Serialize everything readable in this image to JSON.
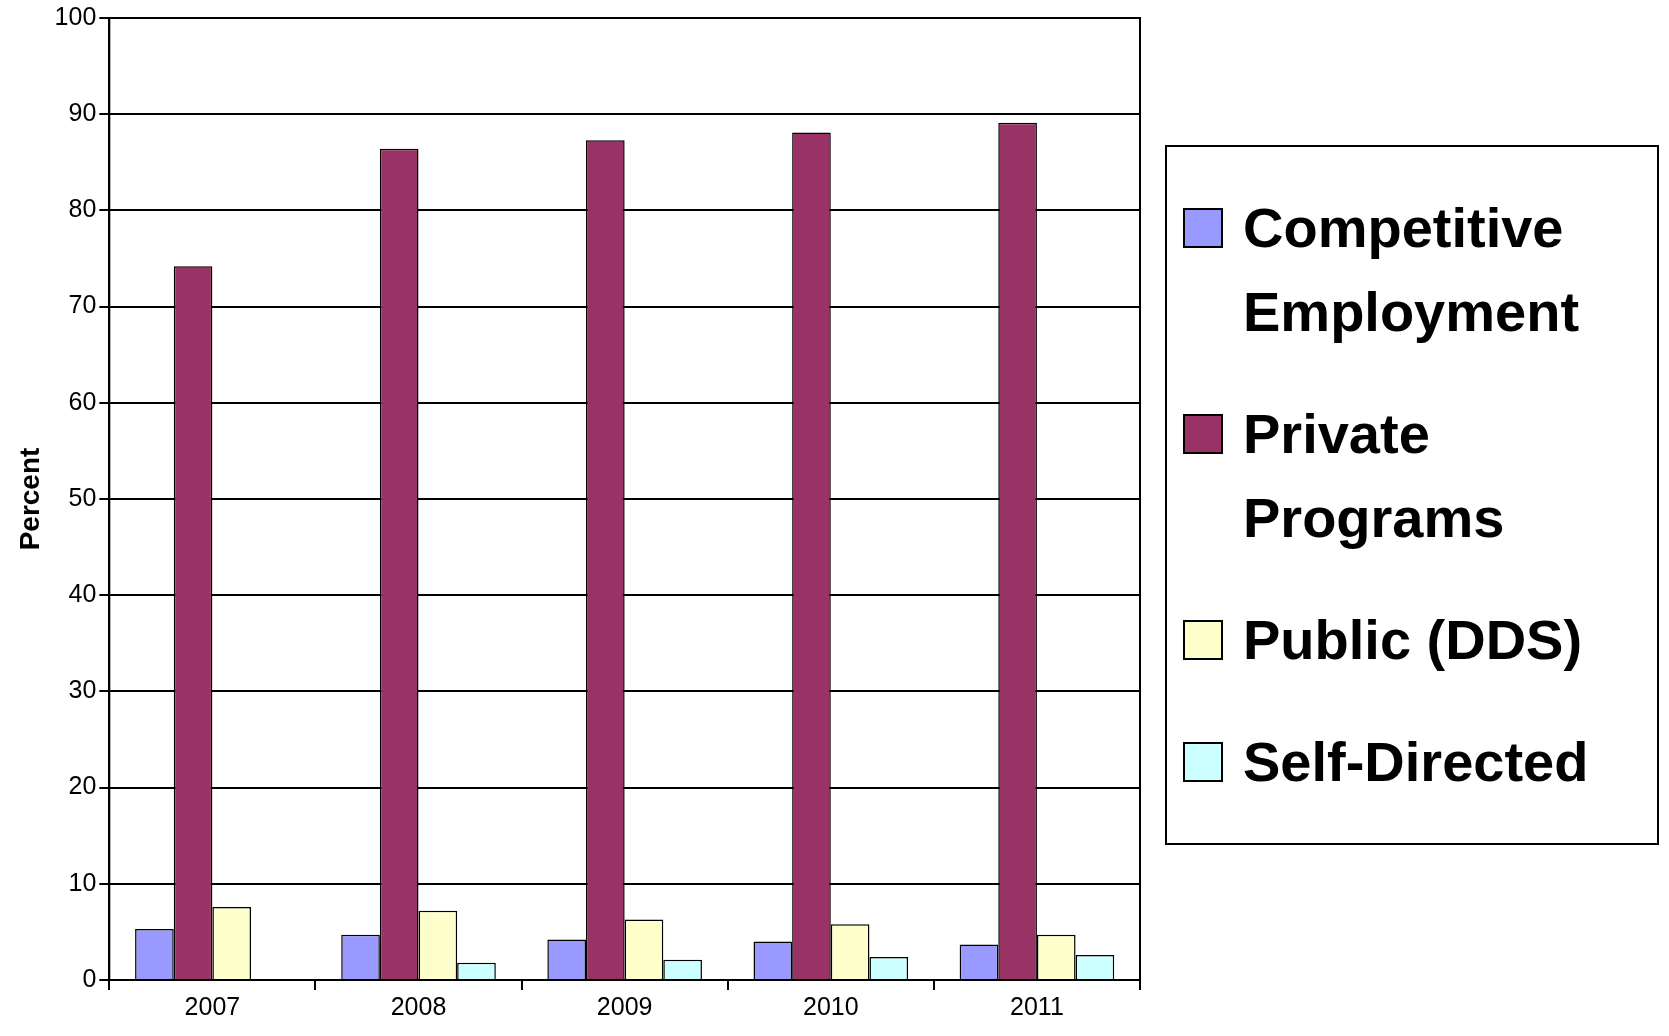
{
  "chart_data": {
    "type": "bar",
    "ylabel": "Percent",
    "categories": [
      "2007",
      "2008",
      "2009",
      "2010",
      "2011"
    ],
    "series": [
      {
        "name": "Competitive Employment",
        "color": "#9999ff",
        "values": [
          5.3,
          4.7,
          4.2,
          4.0,
          3.7
        ]
      },
      {
        "name": "Private Programs",
        "color": "#993366",
        "values": [
          74.2,
          86.4,
          87.3,
          88.1,
          89.1
        ]
      },
      {
        "name": "Public (DDS)",
        "color": "#ffffcc",
        "values": [
          7.6,
          7.2,
          6.3,
          5.8,
          4.7
        ]
      },
      {
        "name": "Self-Directed",
        "color": "#ccffff",
        "values": [
          null,
          1.8,
          2.1,
          2.4,
          2.6
        ]
      }
    ],
    "ylim": [
      0,
      100
    ],
    "yticks": [
      0,
      10,
      20,
      30,
      40,
      50,
      60,
      70,
      80,
      90,
      100
    ],
    "grid": "y",
    "legend": "right"
  }
}
